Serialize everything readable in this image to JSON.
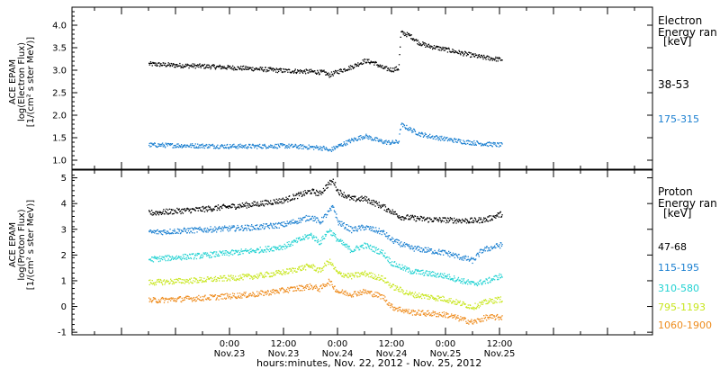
{
  "x_axis": {
    "label": "hours:minutes, Nov. 22, 2012 - Nov. 25, 2012",
    "ticks": [
      {
        "h": 36,
        "time": "0:00",
        "date": "Nov.23"
      },
      {
        "h": 48,
        "time": "12:00",
        "date": "Nov.23"
      },
      {
        "h": 60,
        "time": "0:00",
        "date": "Nov.24"
      },
      {
        "h": 72,
        "time": "12:00",
        "date": "Nov.24"
      },
      {
        "h": 84,
        "time": "0:00",
        "date": "Nov.25"
      },
      {
        "h": 96,
        "time": "12:00",
        "date": "Nov.25"
      }
    ]
  },
  "electron_panel": {
    "ylabel_lines": [
      "ACE EPAM",
      "log(Electron Flux)",
      "[1/(cm² s ster MeV)]"
    ],
    "legend": {
      "line1": "Electron",
      "line2": "Energy ran",
      "units": "[keV]"
    },
    "series": [
      {
        "name": "38-53",
        "color": "#000000"
      },
      {
        "name": "175-315",
        "color": "#1a7fd0"
      }
    ]
  },
  "proton_panel": {
    "ylabel_lines": [
      "ACE EPAM",
      "log(Proton Flux)",
      "[1/(cm² s ster MeV)]"
    ],
    "legend": {
      "line1": "Proton",
      "line2": "Energy ran",
      "units": "[keV]"
    },
    "series": [
      {
        "name": "47-68",
        "color": "#000000"
      },
      {
        "name": "115-195",
        "color": "#1a7fd0"
      },
      {
        "name": "310-580",
        "color": "#22d2d2"
      },
      {
        "name": "795-1193",
        "color": "#c8e61e"
      },
      {
        "name": "1060-1900",
        "color": "#ee8c1e"
      }
    ]
  },
  "chart_data": [
    {
      "type": "scatter",
      "xlabel": "hours:minutes, Nov. 22, 2012 - Nov. 25, 2012",
      "ylabel": "ACE EPAM log(Electron Flux) [1/(cm² s ster MeV)]",
      "xlim": [
        "2012-11-22 01:00",
        "2012-11-26 10:00"
      ],
      "ylim": [
        0.8,
        4.4
      ],
      "yticks": [
        "1.0",
        "1.5",
        "2.0",
        "2.5",
        "3.0",
        "3.5",
        "4.0"
      ],
      "x_hours_since_2012-11-22_00:00_labelled_by_ticks": true,
      "series": [
        {
          "name": "38-53",
          "color": "#000000",
          "points": [
            [
              18,
              3.15
            ],
            [
              24,
              3.12
            ],
            [
              30,
              3.1
            ],
            [
              36,
              3.07
            ],
            [
              42,
              3.04
            ],
            [
              48,
              3.0
            ],
            [
              54,
              2.98
            ],
            [
              57,
              2.96
            ],
            [
              58,
              2.9
            ],
            [
              60,
              2.98
            ],
            [
              63,
              3.08
            ],
            [
              66,
              3.22
            ],
            [
              68,
              3.18
            ],
            [
              70,
              3.06
            ],
            [
              72,
              3.02
            ],
            [
              73.5,
              3.05
            ],
            [
              74,
              3.85
            ],
            [
              76,
              3.78
            ],
            [
              78,
              3.62
            ],
            [
              80,
              3.55
            ],
            [
              84,
              3.47
            ],
            [
              88,
              3.38
            ],
            [
              92,
              3.3
            ],
            [
              96,
              3.25
            ]
          ]
        },
        {
          "name": "175-315",
          "color": "#1a7fd0",
          "points": [
            [
              18,
              1.35
            ],
            [
              24,
              1.34
            ],
            [
              30,
              1.33
            ],
            [
              36,
              1.32
            ],
            [
              42,
              1.32
            ],
            [
              48,
              1.33
            ],
            [
              54,
              1.3
            ],
            [
              57,
              1.28
            ],
            [
              58,
              1.22
            ],
            [
              60,
              1.32
            ],
            [
              63,
              1.45
            ],
            [
              66,
              1.55
            ],
            [
              68,
              1.48
            ],
            [
              70,
              1.42
            ],
            [
              72,
              1.4
            ],
            [
              73.5,
              1.42
            ],
            [
              74,
              1.8
            ],
            [
              76,
              1.7
            ],
            [
              78,
              1.6
            ],
            [
              80,
              1.55
            ],
            [
              84,
              1.48
            ],
            [
              88,
              1.42
            ],
            [
              92,
              1.38
            ],
            [
              96,
              1.35
            ]
          ]
        }
      ]
    },
    {
      "type": "scatter",
      "xlabel": "hours:minutes, Nov. 22, 2012 - Nov. 25, 2012",
      "ylabel": "ACE EPAM log(Proton Flux) [1/(cm² s ster MeV)]",
      "xlim": [
        "2012-11-22 01:00",
        "2012-11-26 10:00"
      ],
      "ylim": [
        -1.1,
        5.3
      ],
      "yticks": [
        "-1",
        "0",
        "1",
        "2",
        "3",
        "4",
        "5"
      ],
      "series": [
        {
          "name": "47-68",
          "color": "#000000",
          "points": [
            [
              18,
              3.65
            ],
            [
              30,
              3.8
            ],
            [
              42,
              4.0
            ],
            [
              48,
              4.15
            ],
            [
              54,
              4.5
            ],
            [
              56,
              4.4
            ],
            [
              58,
              4.8
            ],
            [
              59,
              4.9
            ],
            [
              60,
              4.5
            ],
            [
              63,
              4.2
            ],
            [
              66,
              4.2
            ],
            [
              70,
              3.9
            ],
            [
              74,
              3.5
            ],
            [
              80,
              3.4
            ],
            [
              90,
              3.35
            ],
            [
              93,
              3.4
            ],
            [
              96,
              3.6
            ]
          ]
        },
        {
          "name": "115-195",
          "color": "#1a7fd0",
          "points": [
            [
              18,
              2.9
            ],
            [
              30,
              3.0
            ],
            [
              42,
              3.1
            ],
            [
              48,
              3.2
            ],
            [
              54,
              3.5
            ],
            [
              56,
              3.3
            ],
            [
              58,
              3.7
            ],
            [
              59,
              3.9
            ],
            [
              60,
              3.3
            ],
            [
              63,
              3.0
            ],
            [
              66,
              3.1
            ],
            [
              70,
              2.9
            ],
            [
              72,
              2.6
            ],
            [
              76,
              2.3
            ],
            [
              84,
              2.1
            ],
            [
              90,
              1.8
            ],
            [
              92,
              2.2
            ],
            [
              96,
              2.4
            ]
          ]
        },
        {
          "name": "310-580",
          "color": "#22d2d2",
          "points": [
            [
              18,
              1.85
            ],
            [
              30,
              2.0
            ],
            [
              42,
              2.2
            ],
            [
              48,
              2.35
            ],
            [
              54,
              2.8
            ],
            [
              56,
              2.5
            ],
            [
              58,
              3.0
            ],
            [
              60,
              2.6
            ],
            [
              63,
              2.2
            ],
            [
              66,
              2.4
            ],
            [
              70,
              2.1
            ],
            [
              72,
              1.7
            ],
            [
              76,
              1.4
            ],
            [
              84,
              1.2
            ],
            [
              90,
              0.9
            ],
            [
              93,
              1.0
            ],
            [
              96,
              1.2
            ]
          ]
        },
        {
          "name": "795-1193",
          "color": "#c8e61e",
          "points": [
            [
              18,
              0.95
            ],
            [
              30,
              1.05
            ],
            [
              42,
              1.2
            ],
            [
              48,
              1.35
            ],
            [
              54,
              1.6
            ],
            [
              56,
              1.4
            ],
            [
              58,
              1.8
            ],
            [
              60,
              1.3
            ],
            [
              63,
              1.2
            ],
            [
              66,
              1.3
            ],
            [
              70,
              1.1
            ],
            [
              72,
              0.8
            ],
            [
              76,
              0.5
            ],
            [
              84,
              0.3
            ],
            [
              90,
              0.0
            ],
            [
              93,
              0.2
            ],
            [
              96,
              0.3
            ]
          ]
        },
        {
          "name": "1060-1900",
          "color": "#ee8c1e",
          "points": [
            [
              18,
              0.25
            ],
            [
              30,
              0.35
            ],
            [
              42,
              0.5
            ],
            [
              48,
              0.65
            ],
            [
              54,
              0.8
            ],
            [
              56,
              0.7
            ],
            [
              58,
              1.0
            ],
            [
              60,
              0.6
            ],
            [
              63,
              0.5
            ],
            [
              66,
              0.6
            ],
            [
              70,
              0.4
            ],
            [
              72,
              0.0
            ],
            [
              76,
              -0.2
            ],
            [
              84,
              -0.3
            ],
            [
              90,
              -0.6
            ],
            [
              93,
              -0.4
            ],
            [
              96,
              -0.4
            ]
          ]
        }
      ]
    }
  ]
}
